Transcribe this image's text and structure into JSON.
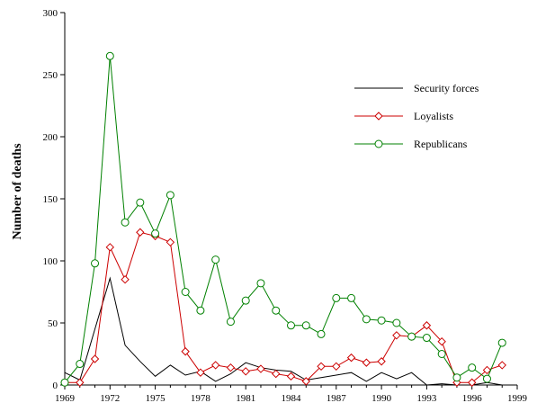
{
  "chart_data": {
    "type": "line",
    "title": "",
    "xlabel": "",
    "ylabel": "Number of deaths",
    "xlim": [
      1969,
      1999
    ],
    "ylim": [
      0,
      300
    ],
    "x_ticks": [
      1969,
      1972,
      1975,
      1978,
      1981,
      1984,
      1987,
      1990,
      1993,
      1996,
      1999
    ],
    "y_ticks": [
      0,
      50,
      100,
      150,
      200,
      250,
      300
    ],
    "grid": false,
    "legend_position": "right",
    "x": [
      1969,
      1970,
      1971,
      1972,
      1973,
      1974,
      1975,
      1976,
      1977,
      1978,
      1979,
      1980,
      1981,
      1982,
      1983,
      1984,
      1985,
      1986,
      1987,
      1988,
      1989,
      1990,
      1991,
      1992,
      1993,
      1994,
      1995,
      1996,
      1997,
      1998
    ],
    "series": [
      {
        "name": "Security forces",
        "color": "#000000",
        "marker": "none",
        "values": [
          10,
          4,
          45,
          86,
          32,
          19,
          7,
          16,
          8,
          11,
          3,
          9,
          18,
          14,
          12,
          11,
          4,
          6,
          8,
          10,
          3,
          10,
          5,
          10,
          0,
          1,
          0,
          0,
          2,
          0
        ]
      },
      {
        "name": "Loyalists",
        "color": "#cc0000",
        "marker": "diamond",
        "values": [
          2,
          2,
          21,
          111,
          85,
          123,
          120,
          115,
          27,
          10,
          16,
          14,
          11,
          13,
          9,
          7,
          3,
          15,
          15,
          22,
          18,
          19,
          40,
          39,
          48,
          35,
          2,
          2,
          12,
          16
        ]
      },
      {
        "name": "Republicans",
        "color": "#008000",
        "marker": "circle",
        "values": [
          2,
          17,
          98,
          265,
          131,
          147,
          122,
          153,
          75,
          60,
          101,
          51,
          68,
          82,
          60,
          48,
          48,
          41,
          70,
          70,
          53,
          52,
          50,
          39,
          38,
          25,
          6,
          14,
          5,
          34
        ]
      }
    ]
  }
}
